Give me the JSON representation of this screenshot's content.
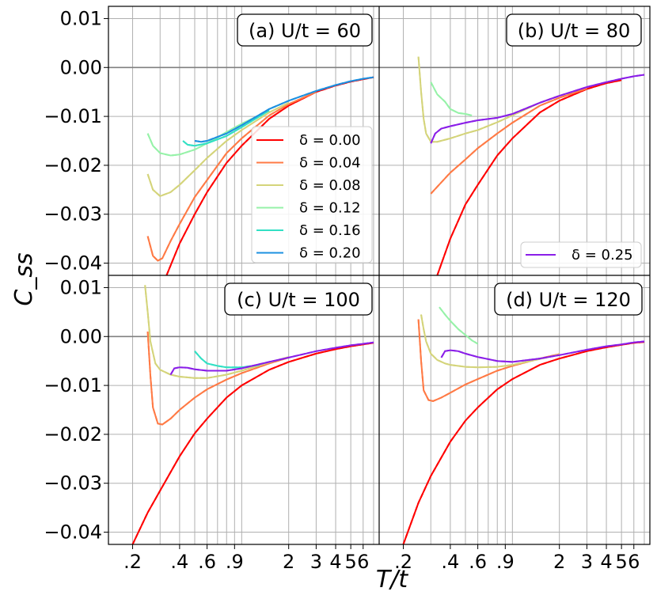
{
  "figure": {
    "xlabel": "T/t",
    "ylabel": "C_ss"
  },
  "chart_data": [
    {
      "type": "line",
      "panel": "a",
      "title": "(a) U/t = 60",
      "xscale": "log",
      "xlim": [
        0.14,
        7.6
      ],
      "ylim": [
        -0.0425,
        0.0125
      ],
      "grid": true,
      "legend_position": "center-right",
      "series": [
        {
          "name": "δ = 0.00",
          "color": "#ff0000",
          "x": [
            0.33,
            0.4,
            0.5,
            0.6,
            0.8,
            1.0,
            1.5,
            2.0,
            3.0,
            4.0,
            5.0,
            6.0,
            7.0
          ],
          "y": [
            -0.0425,
            -0.036,
            -0.03,
            -0.0255,
            -0.0195,
            -0.016,
            -0.0105,
            -0.0078,
            -0.005,
            -0.0037,
            -0.0029,
            -0.0024,
            -0.002
          ]
        },
        {
          "name": "δ = 0.04",
          "color": "#ff7a45",
          "x": [
            0.25,
            0.27,
            0.29,
            0.31,
            0.35,
            0.4,
            0.5,
            0.6,
            0.8,
            1.0,
            1.5,
            2.0,
            3.0
          ],
          "y": [
            -0.0345,
            -0.0385,
            -0.0395,
            -0.039,
            -0.0355,
            -0.032,
            -0.0265,
            -0.023,
            -0.0175,
            -0.0145,
            -0.0098,
            -0.0075,
            -0.005
          ]
        },
        {
          "name": "δ = 0.08",
          "color": "#d4d47a",
          "x": [
            0.25,
            0.27,
            0.3,
            0.35,
            0.4,
            0.5,
            0.6,
            0.8,
            1.0,
            1.5,
            2.0
          ],
          "y": [
            -0.0218,
            -0.025,
            -0.0263,
            -0.0255,
            -0.024,
            -0.021,
            -0.0185,
            -0.015,
            -0.0128,
            -0.0092,
            -0.0072
          ]
        },
        {
          "name": "δ = 0.12",
          "color": "#96f2a8",
          "x": [
            0.25,
            0.27,
            0.3,
            0.35,
            0.4,
            0.5,
            0.6,
            0.8,
            1.0,
            1.5
          ],
          "y": [
            -0.0135,
            -0.016,
            -0.0175,
            -0.018,
            -0.0178,
            -0.0168,
            -0.0155,
            -0.0132,
            -0.0115,
            -0.0088
          ]
        },
        {
          "name": "δ = 0.16",
          "color": "#32e0c4",
          "x": [
            0.42,
            0.45,
            0.5,
            0.6,
            0.8,
            1.0,
            1.5
          ],
          "y": [
            -0.015,
            -0.0158,
            -0.016,
            -0.0155,
            -0.014,
            -0.0122,
            -0.0088
          ]
        },
        {
          "name": "δ = 0.20",
          "color": "#1c90e0",
          "x": [
            0.5,
            0.55,
            0.6,
            0.8,
            1.0,
            1.5,
            2.0,
            3.0,
            4.0,
            5.0,
            6.0,
            7.0
          ],
          "y": [
            -0.015,
            -0.0152,
            -0.015,
            -0.0135,
            -0.0118,
            -0.0085,
            -0.0068,
            -0.0048,
            -0.0036,
            -0.0028,
            -0.0023,
            -0.002
          ]
        }
      ]
    },
    {
      "type": "line",
      "panel": "b",
      "title": "(b) U/t = 80",
      "xscale": "log",
      "xlim": [
        0.14,
        7.6
      ],
      "ylim": [
        -0.0425,
        0.0125
      ],
      "grid": true,
      "legend_position": "bottom-right",
      "series": [
        {
          "name": "",
          "color": "#ff0000",
          "x": [
            0.33,
            0.4,
            0.5,
            0.6,
            0.8,
            1.0,
            1.5,
            2.0,
            3.0,
            4.0,
            5.0
          ],
          "y": [
            -0.0425,
            -0.035,
            -0.028,
            -0.024,
            -0.018,
            -0.0145,
            -0.0092,
            -0.0068,
            -0.0044,
            -0.0032,
            -0.0026
          ]
        },
        {
          "name": "",
          "color": "#ff7a45",
          "x": [
            0.3,
            0.35,
            0.4,
            0.5,
            0.6,
            0.8,
            1.0,
            1.5,
            2.0,
            3.0
          ],
          "y": [
            -0.0258,
            -0.0235,
            -0.0215,
            -0.0188,
            -0.0165,
            -0.0135,
            -0.0113,
            -0.0078,
            -0.0062,
            -0.0043
          ]
        },
        {
          "name": "",
          "color": "#d4d47a",
          "x": [
            0.25,
            0.26,
            0.27,
            0.28,
            0.3,
            0.33,
            0.4,
            0.5,
            0.6,
            0.8,
            1.0,
            1.5,
            2.0
          ],
          "y": [
            0.0022,
            -0.005,
            -0.0105,
            -0.0135,
            -0.0152,
            -0.0152,
            -0.0145,
            -0.0135,
            -0.0128,
            -0.0112,
            -0.0098,
            -0.0072,
            -0.0058
          ]
        },
        {
          "name": "",
          "color": "#96f2a8",
          "x": [
            0.3,
            0.33,
            0.37,
            0.4,
            0.45,
            0.5,
            0.55
          ],
          "y": [
            -0.003,
            -0.0055,
            -0.007,
            -0.0085,
            -0.0093,
            -0.0095,
            -0.0098
          ]
        },
        {
          "name": "δ = 0.25",
          "color": "#8a1ee8",
          "x": [
            0.3,
            0.32,
            0.35,
            0.4,
            0.5,
            0.6,
            0.8,
            1.0,
            1.5,
            2.0,
            3.0,
            4.0,
            5.0,
            6.0,
            7.0
          ],
          "y": [
            -0.0155,
            -0.0135,
            -0.0125,
            -0.012,
            -0.0113,
            -0.0108,
            -0.0103,
            -0.0095,
            -0.0072,
            -0.0058,
            -0.004,
            -0.003,
            -0.0023,
            -0.0018,
            -0.0015
          ]
        }
      ]
    },
    {
      "type": "line",
      "panel": "c",
      "title": "(c) U/t = 100",
      "xscale": "log",
      "xlim": [
        0.14,
        7.6
      ],
      "ylim": [
        -0.0425,
        0.0125
      ],
      "grid": true,
      "series": [
        {
          "name": "",
          "color": "#ff0000",
          "x": [
            0.2,
            0.25,
            0.3,
            0.4,
            0.5,
            0.6,
            0.8,
            1.0,
            1.5,
            2.0,
            3.0,
            4.0,
            5.0,
            6.0,
            7.0
          ],
          "y": [
            -0.0425,
            -0.036,
            -0.0315,
            -0.0245,
            -0.0198,
            -0.0168,
            -0.0125,
            -0.01,
            -0.0068,
            -0.0052,
            -0.0035,
            -0.0026,
            -0.002,
            -0.0016,
            -0.0013
          ]
        },
        {
          "name": "",
          "color": "#ff7a45",
          "x": [
            0.25,
            0.26,
            0.27,
            0.29,
            0.31,
            0.35,
            0.4,
            0.5,
            0.6,
            0.8,
            1.0,
            1.5,
            2.0
          ],
          "y": [
            0.001,
            -0.008,
            -0.0145,
            -0.0178,
            -0.018,
            -0.0168,
            -0.015,
            -0.0125,
            -0.0108,
            -0.0088,
            -0.0075,
            -0.0055,
            -0.0043
          ]
        },
        {
          "name": "",
          "color": "#d4d47a",
          "x": [
            0.24,
            0.25,
            0.26,
            0.28,
            0.3,
            0.35,
            0.4,
            0.5,
            0.6,
            0.8,
            1.0,
            1.5,
            2.0
          ],
          "y": [
            0.0105,
            0.005,
            -0.001,
            -0.0055,
            -0.0068,
            -0.0078,
            -0.0082,
            -0.0085,
            -0.0085,
            -0.0078,
            -0.007,
            -0.0053,
            -0.0042
          ]
        },
        {
          "name": "",
          "color": "#32e0c4",
          "x": [
            0.5,
            0.55,
            0.6,
            0.7,
            0.8,
            1.0,
            1.3
          ],
          "y": [
            -0.003,
            -0.0045,
            -0.0055,
            -0.006,
            -0.0063,
            -0.0063,
            -0.0058
          ]
        },
        {
          "name": "",
          "color": "#8a1ee8",
          "x": [
            0.35,
            0.37,
            0.4,
            0.45,
            0.5,
            0.6,
            0.8,
            1.0,
            1.5,
            2.0,
            3.0,
            4.0,
            5.0,
            6.0,
            7.0
          ],
          "y": [
            -0.0078,
            -0.0065,
            -0.0063,
            -0.0064,
            -0.0067,
            -0.007,
            -0.007,
            -0.0065,
            -0.0052,
            -0.0043,
            -0.003,
            -0.0023,
            -0.0018,
            -0.0015,
            -0.0012
          ]
        }
      ]
    },
    {
      "type": "line",
      "panel": "d",
      "title": "(d) U/t = 120",
      "xscale": "log",
      "xlim": [
        0.14,
        7.6
      ],
      "ylim": [
        -0.0425,
        0.0125
      ],
      "grid": true,
      "series": [
        {
          "name": "",
          "color": "#ff0000",
          "x": [
            0.2,
            0.25,
            0.3,
            0.4,
            0.5,
            0.6,
            0.8,
            1.0,
            1.5,
            2.0,
            3.0,
            4.0,
            5.0,
            6.0,
            7.0
          ],
          "y": [
            -0.0425,
            -0.034,
            -0.0285,
            -0.0215,
            -0.0172,
            -0.0145,
            -0.0108,
            -0.0087,
            -0.0058,
            -0.0045,
            -0.003,
            -0.0022,
            -0.0017,
            -0.0013,
            -0.0011
          ]
        },
        {
          "name": "",
          "color": "#ff7a45",
          "x": [
            0.25,
            0.26,
            0.27,
            0.29,
            0.31,
            0.35,
            0.4,
            0.5,
            0.6,
            0.8,
            1.0,
            1.5,
            2.0
          ],
          "y": [
            0.0035,
            -0.005,
            -0.011,
            -0.013,
            -0.0132,
            -0.0125,
            -0.0115,
            -0.0098,
            -0.0087,
            -0.007,
            -0.006,
            -0.0045,
            -0.0036
          ]
        },
        {
          "name": "",
          "color": "#d4d47a",
          "x": [
            0.26,
            0.27,
            0.28,
            0.3,
            0.33,
            0.37,
            0.4,
            0.5,
            0.6,
            0.8,
            1.0,
            1.5,
            2.0
          ],
          "y": [
            0.0045,
            0.0015,
            -0.001,
            -0.0035,
            -0.0048,
            -0.0055,
            -0.0058,
            -0.0062,
            -0.0063,
            -0.0062,
            -0.0058,
            -0.0046,
            -0.0037
          ]
        },
        {
          "name": "",
          "color": "#96f2a8",
          "x": [
            0.34,
            0.37,
            0.4,
            0.45,
            0.5,
            0.55,
            0.6
          ],
          "y": [
            0.006,
            0.0045,
            0.0032,
            0.0015,
            0.0003,
            -0.0008,
            -0.0015
          ]
        },
        {
          "name": "",
          "color": "#8a1ee8",
          "x": [
            0.35,
            0.37,
            0.4,
            0.45,
            0.5,
            0.6,
            0.8,
            1.0,
            1.5,
            2.0,
            3.0,
            4.0,
            5.0,
            6.0,
            7.0
          ],
          "y": [
            -0.0043,
            -0.003,
            -0.0028,
            -0.003,
            -0.0035,
            -0.0042,
            -0.005,
            -0.0052,
            -0.0045,
            -0.0038,
            -0.0027,
            -0.002,
            -0.0016,
            -0.0012,
            -0.001
          ]
        }
      ]
    }
  ],
  "ticks": {
    "y": [
      "0.01",
      "0.00",
      "−0.01",
      "−0.02",
      "−0.03",
      "−0.04"
    ],
    "x": [
      ".2",
      ".4",
      ".6",
      ".9",
      "2",
      "3",
      "4",
      "5",
      "6"
    ]
  }
}
